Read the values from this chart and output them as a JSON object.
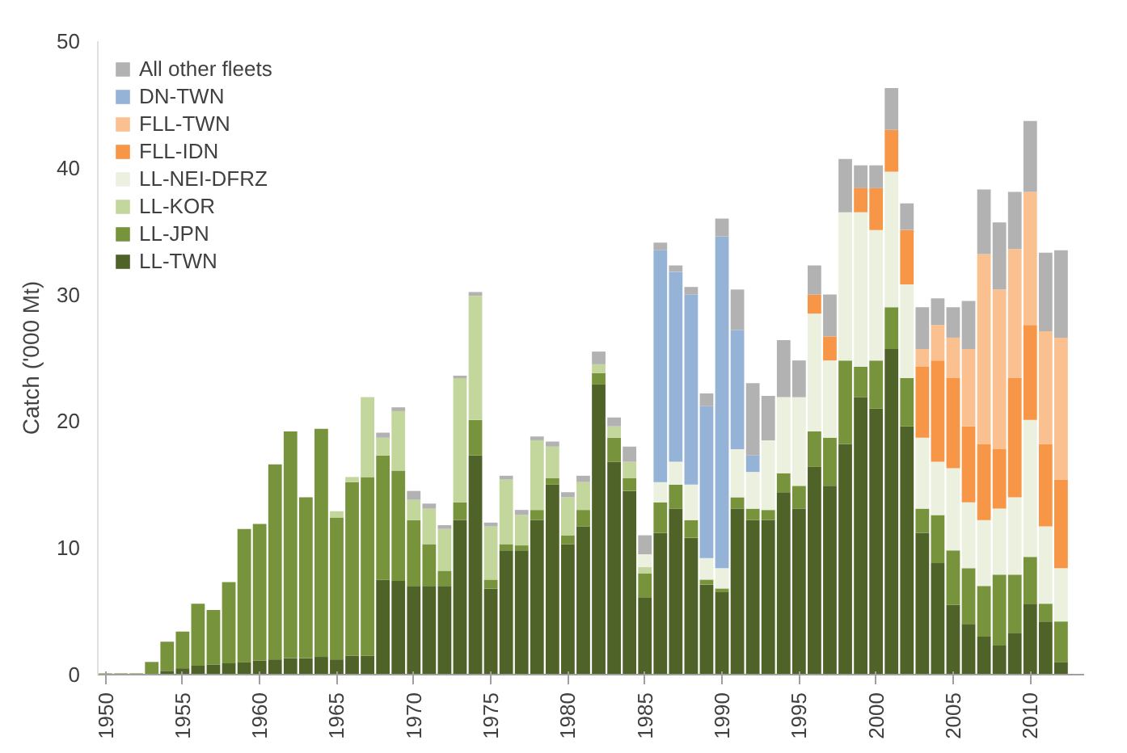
{
  "chart_data": {
    "type": "bar",
    "stacked": true,
    "ylabel": "Catch ('000 Mt)",
    "x": [
      1950,
      1951,
      1952,
      1953,
      1954,
      1955,
      1956,
      1957,
      1958,
      1959,
      1960,
      1961,
      1962,
      1963,
      1964,
      1965,
      1966,
      1967,
      1968,
      1969,
      1970,
      1971,
      1972,
      1973,
      1974,
      1975,
      1976,
      1977,
      1978,
      1979,
      1980,
      1981,
      1982,
      1983,
      1984,
      1985,
      1986,
      1987,
      1988,
      1989,
      1990,
      1991,
      1992,
      1993,
      1994,
      1995,
      1996,
      1997,
      1998,
      1999,
      2000,
      2001,
      2002,
      2003,
      2004,
      2005,
      2006,
      2007,
      2008,
      2009,
      2010,
      2011,
      2012
    ],
    "series": [
      {
        "name": "LL-TWN",
        "color": "#4f6228",
        "values": [
          0,
          0,
          0,
          0,
          0.3,
          0.5,
          0.7,
          0.8,
          0.9,
          1.0,
          1.1,
          1.2,
          1.3,
          1.3,
          1.4,
          1.2,
          1.5,
          1.5,
          7.5,
          7.4,
          7.0,
          7.0,
          7.0,
          12.2,
          17.3,
          6.8,
          9.8,
          9.8,
          12.2,
          15.0,
          10.3,
          11.7,
          22.9,
          16.8,
          14.5,
          6.1,
          11.2,
          13.1,
          10.8,
          7.1,
          6.5,
          13.1,
          12.2,
          12.2,
          14.4,
          13.1,
          16.4,
          14.9,
          18.2,
          21.9,
          21.0,
          25.7,
          19.6,
          11.2,
          8.8,
          5.5,
          4.0,
          3.0,
          2.3,
          3.3,
          5.6,
          4.2,
          1.0
        ]
      },
      {
        "name": "LL-JPN",
        "color": "#77933c",
        "values": [
          0.1,
          0.1,
          0.1,
          1.0,
          2.3,
          2.9,
          4.9,
          4.3,
          6.4,
          10.5,
          10.8,
          15.4,
          17.9,
          12.7,
          18.0,
          11.2,
          13.7,
          14.1,
          9.8,
          8.7,
          5.2,
          3.3,
          1.2,
          1.4,
          2.8,
          0.7,
          0.5,
          0.4,
          0.8,
          0.5,
          0.7,
          1.3,
          0.9,
          1.9,
          1.0,
          1.9,
          2.4,
          1.9,
          1.4,
          0.4,
          0.3,
          0.9,
          0.9,
          0.8,
          1.5,
          1.8,
          2.8,
          3.8,
          6.6,
          2.4,
          3.8,
          3.3,
          3.8,
          1.9,
          3.8,
          4.3,
          4.4,
          4.0,
          5.6,
          4.6,
          3.7,
          1.4,
          3.2
        ]
      },
      {
        "name": "LL-KOR",
        "color": "#c3d69b",
        "values": [
          0,
          0,
          0,
          0,
          0,
          0,
          0,
          0,
          0,
          0,
          0,
          0,
          0,
          0,
          0,
          0.5,
          0.4,
          6.3,
          1.4,
          4.7,
          1.6,
          2.8,
          3.3,
          9.8,
          9.8,
          4.2,
          5.1,
          2.4,
          5.5,
          2.5,
          3.0,
          2.2,
          0.7,
          0.9,
          1.3,
          0.5,
          0,
          0,
          0,
          0,
          0,
          0,
          0,
          0,
          0,
          0,
          0,
          0,
          0,
          0,
          0,
          0,
          0,
          0,
          0,
          0,
          0,
          0,
          0,
          0,
          0,
          0,
          0
        ]
      },
      {
        "name": "LL-NEI-DFRZ",
        "color": "#ebf1de",
        "values": [
          0,
          0,
          0,
          0,
          0,
          0,
          0,
          0,
          0,
          0,
          0,
          0,
          0,
          0,
          0,
          0,
          0,
          0,
          0,
          0,
          0,
          0,
          0,
          0,
          0,
          0,
          0,
          0,
          0,
          0,
          0,
          0,
          0,
          0,
          0,
          1.0,
          1.6,
          1.8,
          2.8,
          1.7,
          1.6,
          3.8,
          2.9,
          5.5,
          6.0,
          7.0,
          9.3,
          6.1,
          11.7,
          12.2,
          10.3,
          10.7,
          7.4,
          5.6,
          4.2,
          6.5,
          5.2,
          5.2,
          5.2,
          6.1,
          10.8,
          6.1,
          4.2
        ]
      },
      {
        "name": "FLL-IDN",
        "color": "#f79646",
        "values": [
          0,
          0,
          0,
          0,
          0,
          0,
          0,
          0,
          0,
          0,
          0,
          0,
          0,
          0,
          0,
          0,
          0,
          0,
          0,
          0,
          0,
          0,
          0,
          0,
          0,
          0,
          0,
          0,
          0,
          0,
          0,
          0,
          0,
          0,
          0,
          0,
          0,
          0,
          0,
          0,
          0,
          0,
          0,
          0,
          0,
          0,
          1.5,
          1.9,
          0,
          1.9,
          3.3,
          3.3,
          4.3,
          5.6,
          8.0,
          7.1,
          6.0,
          6.0,
          4.7,
          9.4,
          7.5,
          6.5,
          7.0
        ]
      },
      {
        "name": "FLL-TWN",
        "color": "#fac090",
        "values": [
          0,
          0,
          0,
          0,
          0,
          0,
          0,
          0,
          0,
          0,
          0,
          0,
          0,
          0,
          0,
          0,
          0,
          0,
          0,
          0,
          0,
          0,
          0,
          0,
          0,
          0,
          0,
          0,
          0,
          0,
          0,
          0,
          0,
          0,
          0,
          0,
          0,
          0,
          0,
          0,
          0,
          0,
          0,
          0,
          0,
          0,
          0,
          0,
          0,
          0,
          0,
          0,
          0,
          1.4,
          2.8,
          3.2,
          6.1,
          15.0,
          12.6,
          10.2,
          10.5,
          8.9,
          11.2
        ]
      },
      {
        "name": "DN-TWN",
        "color": "#95b3d7",
        "values": [
          0,
          0,
          0,
          0,
          0,
          0,
          0,
          0,
          0,
          0,
          0,
          0,
          0,
          0,
          0,
          0,
          0,
          0,
          0,
          0,
          0,
          0,
          0,
          0,
          0,
          0,
          0,
          0,
          0,
          0,
          0,
          0,
          0,
          0,
          0,
          0,
          18.3,
          15.0,
          15.0,
          12.0,
          26.2,
          9.4,
          1.3,
          0,
          0,
          0,
          0,
          0,
          0,
          0,
          0,
          0,
          0,
          0,
          0,
          0,
          0,
          0,
          0,
          0,
          0,
          0,
          0
        ]
      },
      {
        "name": "All other fleets",
        "color": "#b2b2b2",
        "values": [
          0,
          0,
          0,
          0,
          0,
          0,
          0,
          0,
          0,
          0,
          0,
          0,
          0,
          0,
          0,
          0,
          0,
          0,
          0.4,
          0.3,
          0.7,
          0.4,
          0.3,
          0.2,
          0.3,
          0.3,
          0.3,
          0.4,
          0.3,
          0.4,
          0.4,
          0.5,
          1.0,
          0.7,
          1.2,
          1.5,
          0.6,
          0.5,
          0.6,
          1.0,
          1.4,
          3.2,
          5.7,
          3.5,
          4.5,
          2.9,
          2.3,
          3.3,
          4.2,
          1.8,
          1.8,
          3.3,
          2.1,
          3.3,
          2.1,
          2.4,
          3.8,
          5.1,
          5.3,
          4.5,
          5.6,
          6.2,
          6.9
        ]
      }
    ],
    "xlim": [
      1949.5,
      2013.5
    ],
    "xticks": [
      1950,
      1955,
      1960,
      1965,
      1970,
      1975,
      1980,
      1985,
      1990,
      1995,
      2000,
      2005,
      2010
    ],
    "ylim": [
      0,
      50
    ],
    "yticks": [
      0,
      10,
      20,
      30,
      40,
      50
    ],
    "grid": false,
    "legend": "top left"
  }
}
